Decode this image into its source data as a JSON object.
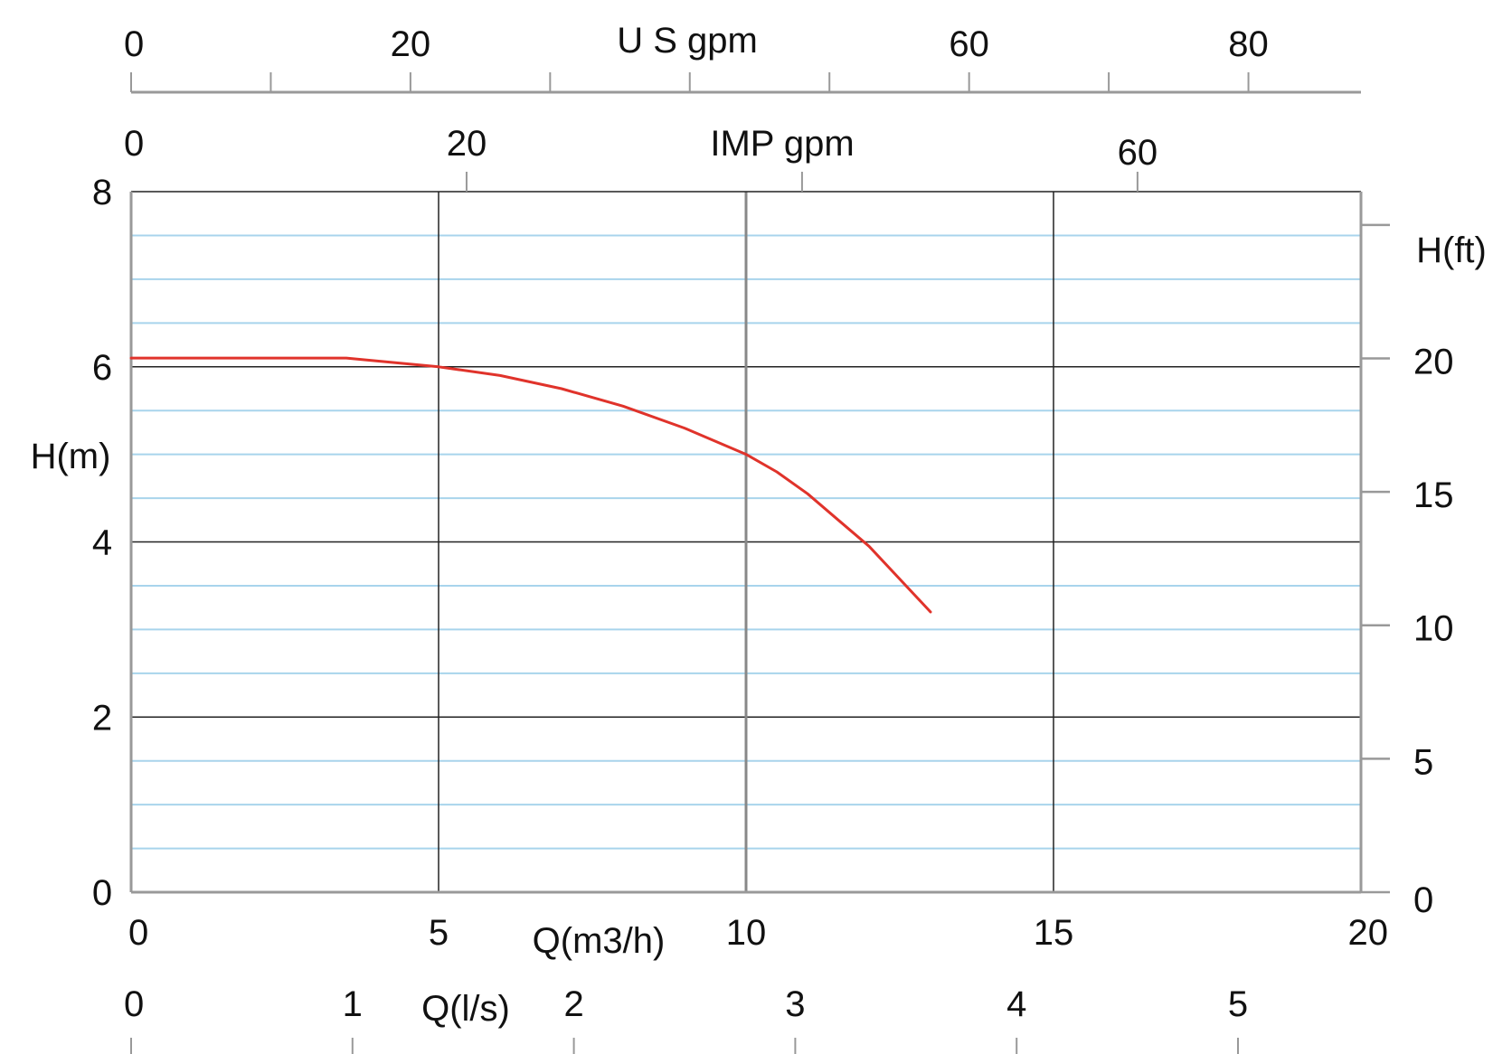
{
  "chart_data": {
    "type": "line",
    "title": "",
    "axes": {
      "x_m3h": {
        "label": "Q(m3/h)",
        "range": [
          0,
          20
        ],
        "ticks": [
          0,
          5,
          10,
          15,
          20
        ]
      },
      "x_ls": {
        "label": "Q(l/s)",
        "ticks": [
          0,
          1,
          2,
          3,
          4,
          5
        ]
      },
      "x_usgpm": {
        "label": "U S gpm",
        "labeled_ticks": [
          0,
          20,
          60,
          80
        ],
        "minor_ticks": [
          10,
          30,
          40,
          50,
          70
        ]
      },
      "x_impgpm": {
        "label": "IMP gpm",
        "labeled_ticks": [
          0,
          20,
          60
        ],
        "minor_ticks": [
          40
        ]
      },
      "y_m": {
        "label": "H(m)",
        "range": [
          0,
          8
        ],
        "ticks": [
          0,
          2,
          4,
          6,
          8
        ]
      },
      "y_ft": {
        "label": "H(ft)",
        "labeled_ticks": [
          0,
          5,
          10,
          15,
          20
        ],
        "minor_ticks": [
          25
        ]
      }
    },
    "grid": true,
    "line_color": "#e0332b",
    "major_grid_color": "#222222",
    "minor_grid_color": "#a8d4ec",
    "series": [
      {
        "x": [
          0,
          3.5,
          5,
          6,
          7,
          8,
          9,
          10,
          10.5,
          11,
          11.5,
          12,
          13
        ],
        "y": [
          6.1,
          6.1,
          6.0,
          5.9,
          5.75,
          5.55,
          5.3,
          5.0,
          4.8,
          4.55,
          4.25,
          3.95,
          3.2
        ]
      }
    ]
  }
}
